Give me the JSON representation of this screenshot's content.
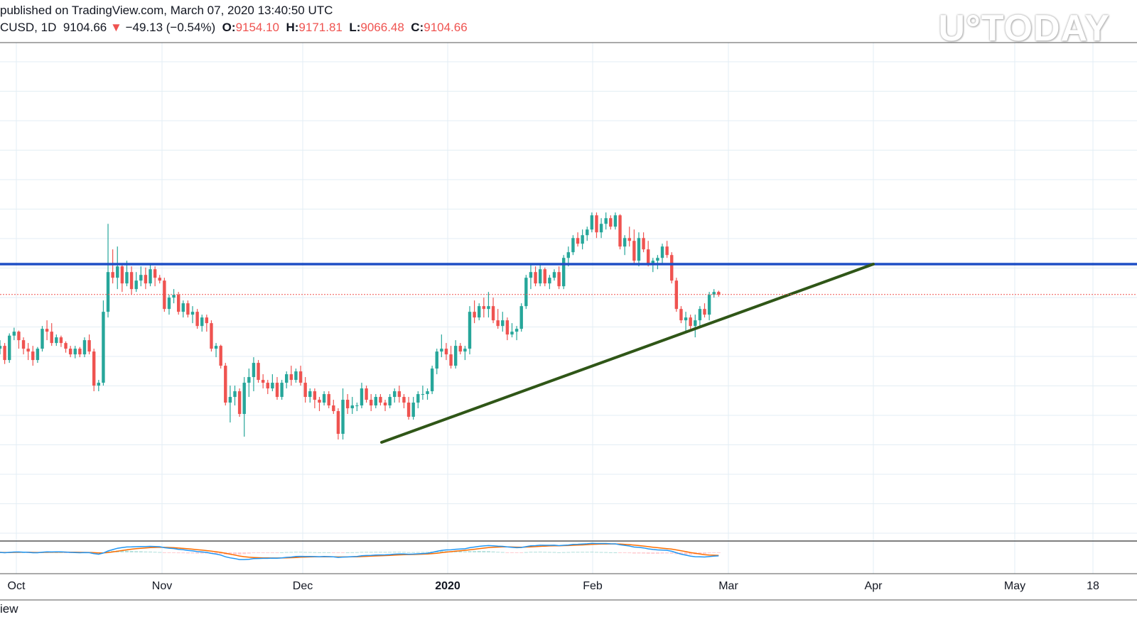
{
  "header": {
    "published": "published on TradingView.com, March 07, 2020 13:40:50 UTC",
    "symbol": "CUSD, 1D",
    "last": "9104.66",
    "change_arrow": "▼",
    "change": "−49.13 (−0.54%)",
    "o_label": "O:",
    "o_value": "9154.10",
    "h_label": "H:",
    "h_value": "9171.81",
    "l_label": "L:",
    "l_value": "9066.48",
    "c_label": "C:",
    "c_value": "9104.66"
  },
  "watermark": "U°TODAY",
  "footer": "iew",
  "colors": {
    "up": "#26a69a",
    "down": "#ef5350",
    "resistance": "#1e4fc5",
    "trendline": "#2f5617",
    "grid": "#e3eef4",
    "current_price": "#ef5350",
    "macd": "#2196f3",
    "signal": "#ff6d00"
  },
  "chart_data": {
    "type": "candlestick",
    "timeframe": "1D",
    "x_tick_labels": [
      "Oct",
      "Nov",
      "Dec",
      "2020",
      "Feb",
      "Mar",
      "Apr",
      "May",
      "18"
    ],
    "price_range": [
      6200,
      11200
    ],
    "current_price": 9104.66,
    "resistance_level": 9640,
    "trendline": {
      "from": [
        "2019-12-18",
        6500
      ],
      "to": [
        "2020-03-31",
        9640
      ]
    },
    "candles": [
      [
        8150,
        8300,
        8050,
        8200
      ],
      [
        8200,
        8250,
        7880,
        7950
      ],
      [
        7950,
        8420,
        7900,
        8380
      ],
      [
        8380,
        8520,
        8300,
        8450
      ],
      [
        8450,
        8470,
        8150,
        8300
      ],
      [
        8300,
        8350,
        8050,
        8150
      ],
      [
        8150,
        8250,
        7950,
        8100
      ],
      [
        8100,
        8200,
        7850,
        7950
      ],
      [
        7950,
        8180,
        7900,
        8150
      ],
      [
        8150,
        8550,
        8100,
        8500
      ],
      [
        8500,
        8650,
        8300,
        8450
      ],
      [
        8450,
        8600,
        8200,
        8250
      ],
      [
        8250,
        8400,
        8200,
        8350
      ],
      [
        8350,
        8380,
        8180,
        8250
      ],
      [
        8250,
        8280,
        8080,
        8150
      ],
      [
        8150,
        8200,
        8000,
        8050
      ],
      [
        8050,
        8200,
        7980,
        8150
      ],
      [
        8150,
        8180,
        8000,
        8050
      ],
      [
        8050,
        8350,
        8000,
        8300
      ],
      [
        8300,
        8400,
        8050,
        8100
      ],
      [
        8100,
        8150,
        7400,
        7500
      ],
      [
        7500,
        7600,
        7400,
        7550
      ],
      [
        7550,
        9000,
        7500,
        8800
      ],
      [
        8800,
        10350,
        8700,
        9500
      ],
      [
        9500,
        9900,
        9300,
        9400
      ],
      [
        9400,
        9950,
        9200,
        9600
      ],
      [
        9600,
        9650,
        9150,
        9300
      ],
      [
        9300,
        9700,
        9250,
        9500
      ],
      [
        9500,
        9600,
        9100,
        9200
      ],
      [
        9200,
        9500,
        9150,
        9350
      ],
      [
        9350,
        9600,
        9250,
        9450
      ],
      [
        9450,
        9580,
        9200,
        9300
      ],
      [
        9300,
        9650,
        9250,
        9550
      ],
      [
        9550,
        9600,
        9250,
        9400
      ],
      [
        9400,
        9450,
        9300,
        9350
      ],
      [
        9350,
        9400,
        8800,
        8850
      ],
      [
        8850,
        9100,
        8750,
        9050
      ],
      [
        9050,
        9200,
        8950,
        9100
      ],
      [
        9100,
        9150,
        8750,
        8800
      ],
      [
        8800,
        9000,
        8700,
        8950
      ],
      [
        8950,
        9000,
        8700,
        8750
      ],
      [
        8750,
        8900,
        8600,
        8800
      ],
      [
        8800,
        8850,
        8500,
        8550
      ],
      [
        8550,
        8750,
        8450,
        8700
      ],
      [
        8700,
        8750,
        8450,
        8600
      ],
      [
        8600,
        8650,
        8100,
        8150
      ],
      [
        8150,
        8250,
        8000,
        8200
      ],
      [
        8200,
        8220,
        7800,
        7850
      ],
      [
        7850,
        7900,
        7150,
        7200
      ],
      [
        7200,
        7500,
        6850,
        7300
      ],
      [
        7300,
        7500,
        7150,
        7400
      ],
      [
        7400,
        7450,
        6950,
        7000
      ],
      [
        7000,
        7650,
        6600,
        7550
      ],
      [
        7550,
        7800,
        7300,
        7650
      ],
      [
        7650,
        8000,
        7400,
        7900
      ],
      [
        7900,
        7950,
        7550,
        7600
      ],
      [
        7600,
        7700,
        7450,
        7550
      ],
      [
        7550,
        7600,
        7350,
        7450
      ],
      [
        7450,
        7700,
        7400,
        7550
      ],
      [
        7550,
        7650,
        7250,
        7300
      ],
      [
        7300,
        7600,
        7250,
        7550
      ],
      [
        7550,
        7750,
        7450,
        7700
      ],
      [
        7700,
        7850,
        7500,
        7600
      ],
      [
        7600,
        7800,
        7550,
        7750
      ],
      [
        7750,
        7850,
        7500,
        7550
      ],
      [
        7550,
        7650,
        7200,
        7300
      ],
      [
        7300,
        7450,
        7200,
        7400
      ],
      [
        7400,
        7450,
        7100,
        7250
      ],
      [
        7250,
        7300,
        7050,
        7200
      ],
      [
        7200,
        7400,
        7150,
        7350
      ],
      [
        7350,
        7400,
        7100,
        7150
      ],
      [
        7150,
        7250,
        7000,
        7050
      ],
      [
        7050,
        7100,
        6550,
        6650
      ],
      [
        6650,
        7450,
        6550,
        7250
      ],
      [
        7250,
        7350,
        7000,
        7100
      ],
      [
        7100,
        7300,
        7000,
        7150
      ],
      [
        7150,
        7200,
        7050,
        7150
      ],
      [
        7150,
        7550,
        7100,
        7450
      ],
      [
        7450,
        7500,
        7200,
        7250
      ],
      [
        7250,
        7350,
        7050,
        7150
      ],
      [
        7150,
        7350,
        7100,
        7300
      ],
      [
        7300,
        7350,
        7150,
        7200
      ],
      [
        7200,
        7250,
        7050,
        7150
      ],
      [
        7150,
        7350,
        7100,
        7300
      ],
      [
        7300,
        7450,
        7200,
        7400
      ],
      [
        7400,
        7500,
        7200,
        7300
      ],
      [
        7300,
        7350,
        7100,
        7200
      ],
      [
        7200,
        7300,
        6900,
        6950
      ],
      [
        6950,
        7300,
        6900,
        7200
      ],
      [
        7200,
        7400,
        7100,
        7350
      ],
      [
        7350,
        7500,
        7250,
        7350
      ],
      [
        7350,
        7450,
        7250,
        7400
      ],
      [
        7400,
        7850,
        7350,
        7800
      ],
      [
        7800,
        8150,
        7700,
        8100
      ],
      [
        8100,
        8400,
        8000,
        8150
      ],
      [
        8150,
        8250,
        7950,
        8050
      ],
      [
        8050,
        8200,
        7800,
        7850
      ],
      [
        7850,
        8300,
        7800,
        8200
      ],
      [
        8200,
        8250,
        8050,
        8100
      ],
      [
        8100,
        8200,
        7950,
        8150
      ],
      [
        8150,
        8900,
        8050,
        8800
      ],
      [
        8800,
        9000,
        8600,
        8700
      ],
      [
        8700,
        8950,
        8650,
        8900
      ],
      [
        8900,
        9050,
        8700,
        8850
      ],
      [
        8850,
        9150,
        8700,
        8900
      ],
      [
        8900,
        9050,
        8600,
        8650
      ],
      [
        8650,
        8850,
        8500,
        8550
      ],
      [
        8550,
        8800,
        8450,
        8650
      ],
      [
        8650,
        8700,
        8300,
        8400
      ],
      [
        8400,
        8600,
        8350,
        8450
      ],
      [
        8450,
        8550,
        8300,
        8500
      ],
      [
        8500,
        8950,
        8450,
        8900
      ],
      [
        8900,
        9450,
        8850,
        9400
      ],
      [
        9400,
        9650,
        9200,
        9500
      ],
      [
        9500,
        9600,
        9250,
        9300
      ],
      [
        9300,
        9650,
        9250,
        9550
      ],
      [
        9550,
        9580,
        9250,
        9300
      ],
      [
        9300,
        9450,
        9200,
        9400
      ],
      [
        9400,
        9550,
        9350,
        9500
      ],
      [
        9500,
        9600,
        9200,
        9250
      ],
      [
        9250,
        9800,
        9200,
        9750
      ],
      [
        9750,
        9950,
        9600,
        9850
      ],
      [
        9850,
        10150,
        9800,
        10100
      ],
      [
        10100,
        10200,
        9950,
        10000
      ],
      [
        10000,
        10250,
        9900,
        10150
      ],
      [
        10150,
        10300,
        10050,
        10250
      ],
      [
        10250,
        10550,
        10200,
        10500
      ],
      [
        10500,
        10550,
        10100,
        10200
      ],
      [
        10200,
        10450,
        10100,
        10350
      ],
      [
        10350,
        10550,
        10250,
        10450
      ],
      [
        10450,
        10500,
        10250,
        10300
      ],
      [
        10300,
        10550,
        10250,
        10500
      ],
      [
        10500,
        10520,
        9900,
        9950
      ],
      [
        9950,
        10150,
        9800,
        10100
      ],
      [
        10100,
        10300,
        9950,
        10050
      ],
      [
        10050,
        10250,
        9650,
        9700
      ],
      [
        9700,
        10200,
        9600,
        10100
      ],
      [
        10100,
        10200,
        9850,
        9900
      ],
      [
        9900,
        10050,
        9600,
        9650
      ],
      [
        9650,
        9750,
        9500,
        9700
      ],
      [
        9700,
        9800,
        9550,
        9750
      ],
      [
        9750,
        10000,
        9650,
        9950
      ],
      [
        9950,
        10050,
        9750,
        9800
      ],
      [
        9800,
        9850,
        9300,
        9350
      ],
      [
        9350,
        9400,
        8800,
        8850
      ],
      [
        8850,
        8900,
        8600,
        8650
      ],
      [
        8650,
        8800,
        8450,
        8700
      ],
      [
        8700,
        8750,
        8500,
        8550
      ],
      [
        8550,
        8750,
        8350,
        8650
      ],
      [
        8650,
        8900,
        8550,
        8850
      ],
      [
        8850,
        8950,
        8700,
        8750
      ],
      [
        8750,
        9150,
        8650,
        9100
      ],
      [
        9100,
        9200,
        9050,
        9150
      ],
      [
        9150,
        9172,
        9066,
        9105
      ]
    ]
  }
}
